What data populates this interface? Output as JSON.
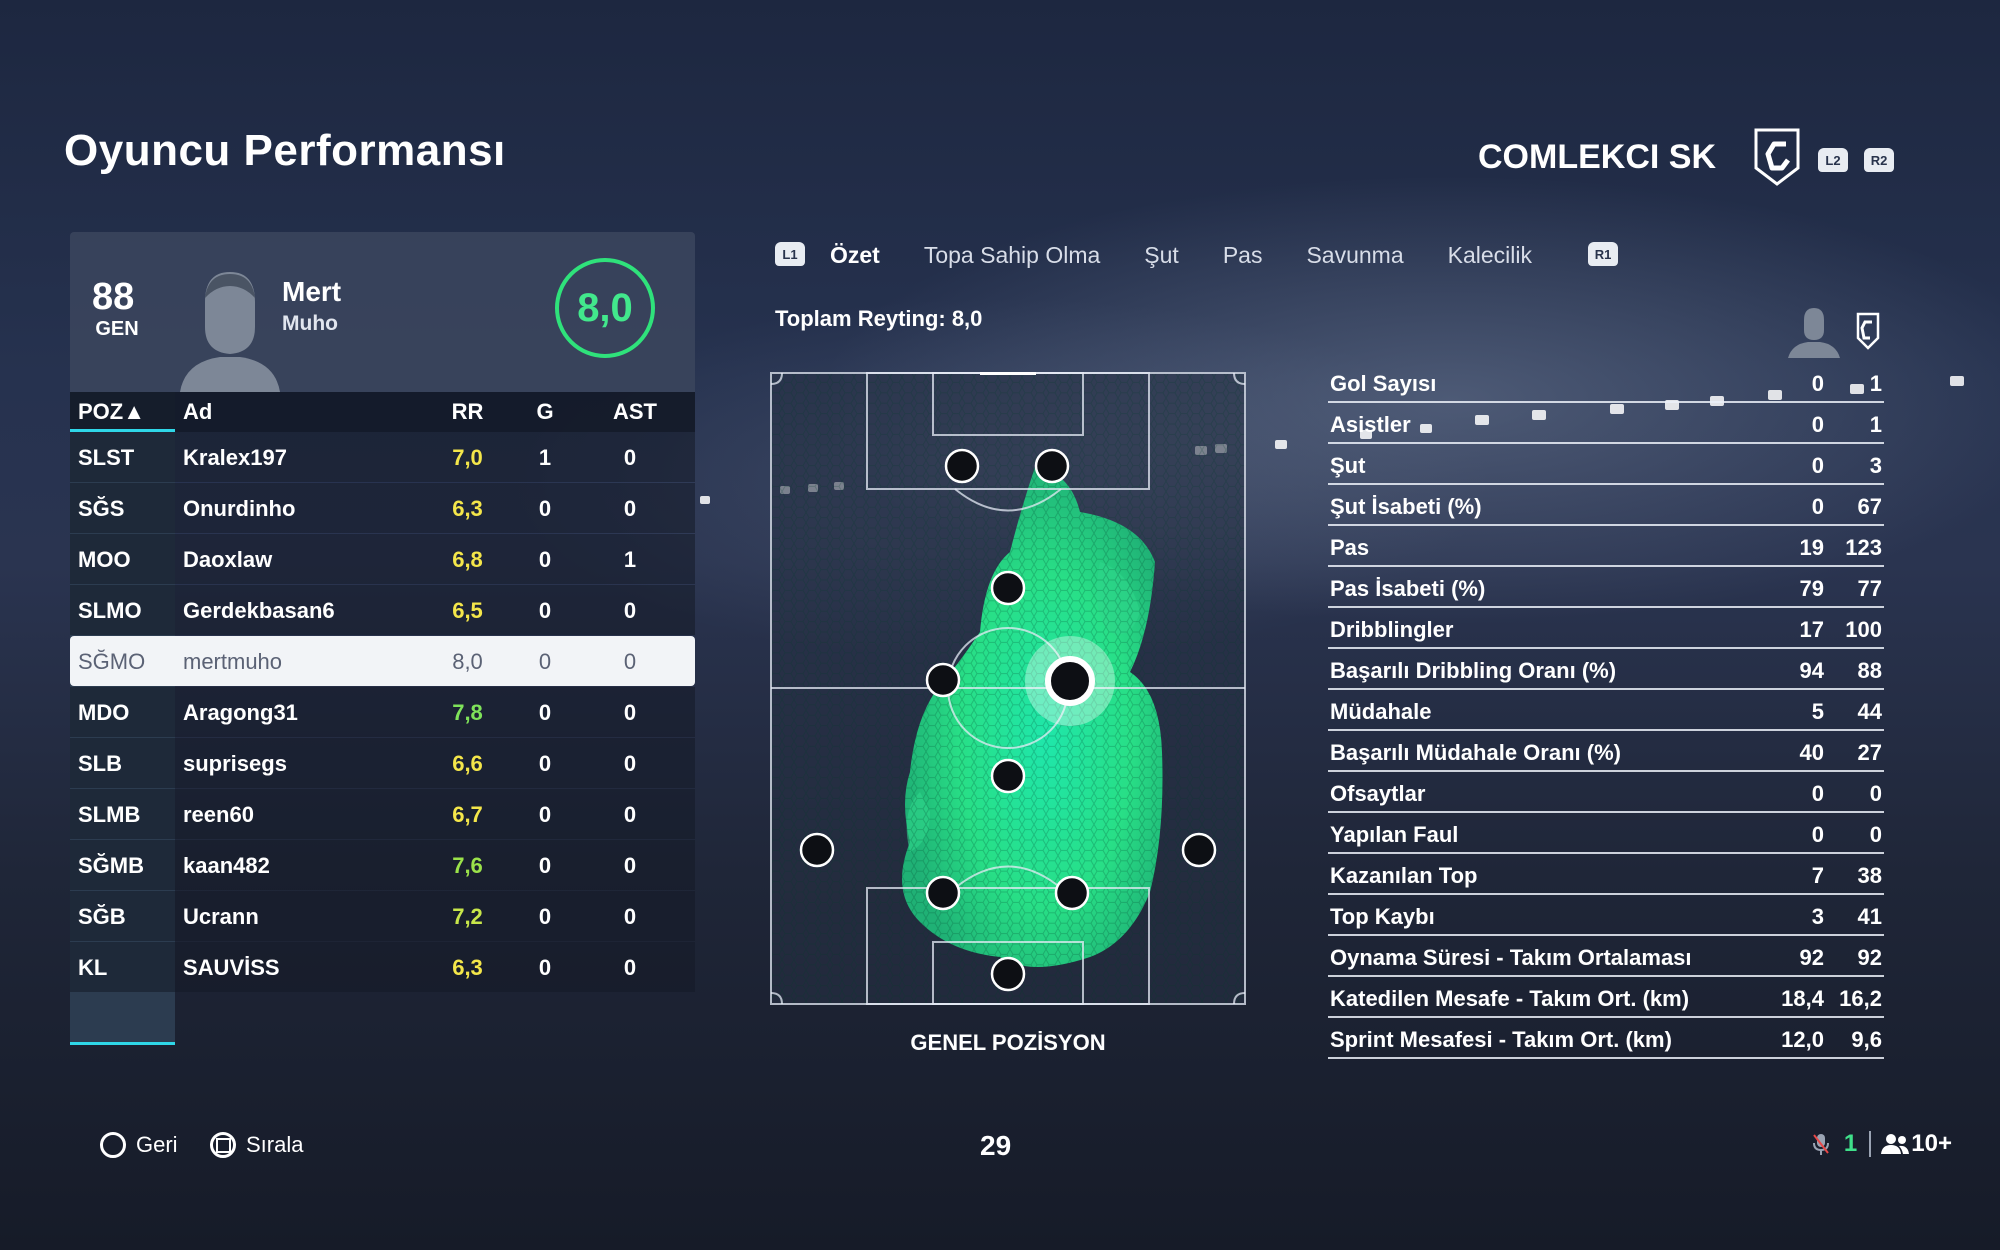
{
  "header": {
    "title": "Oyuncu Performansı",
    "club": "COMLEKCI SK",
    "l2": "L2",
    "r2": "R2"
  },
  "player": {
    "overall": "88",
    "overall_label": "GEN",
    "first_name": "Mert",
    "last_name": "Muho",
    "match_rating": "8,0"
  },
  "table": {
    "headers": {
      "pos": "POZ▲",
      "name": "Ad",
      "rr": "RR",
      "g": "G",
      "ast": "AST"
    },
    "rows": [
      {
        "pos": "SLST",
        "name": "Kralex197",
        "rr": "7,0",
        "g": "1",
        "ast": "0",
        "rr_color": "#f4e64a"
      },
      {
        "pos": "SĞS",
        "name": "Onurdinho",
        "rr": "6,3",
        "g": "0",
        "ast": "0",
        "rr_color": "#f4e64a"
      },
      {
        "pos": "MOO",
        "name": "Daoxlaw",
        "rr": "6,8",
        "g": "0",
        "ast": "1",
        "rr_color": "#f4e64a"
      },
      {
        "pos": "SLMO",
        "name": "Gerdekbasan6",
        "rr": "6,5",
        "g": "0",
        "ast": "0",
        "rr_color": "#f4e64a"
      },
      {
        "pos": "SĞMO",
        "name": "mertmuho",
        "rr": "8,0",
        "g": "0",
        "ast": "0",
        "rr_color": "#5b6275"
      },
      {
        "pos": "MDO",
        "name": "Aragong31",
        "rr": "7,8",
        "g": "0",
        "ast": "0",
        "rr_color": "#7fe35a"
      },
      {
        "pos": "SLB",
        "name": "suprisegs",
        "rr": "6,6",
        "g": "0",
        "ast": "0",
        "rr_color": "#f4e64a"
      },
      {
        "pos": "SLMB",
        "name": "reen60",
        "rr": "6,7",
        "g": "0",
        "ast": "0",
        "rr_color": "#f4e64a"
      },
      {
        "pos": "SĞMB",
        "name": "kaan482",
        "rr": "7,6",
        "g": "0",
        "ast": "0",
        "rr_color": "#9be24a"
      },
      {
        "pos": "SĞB",
        "name": "Ucrann",
        "rr": "7,2",
        "g": "0",
        "ast": "0",
        "rr_color": "#c8e64a"
      },
      {
        "pos": "KL",
        "name": "SAUVİSS",
        "rr": "6,3",
        "g": "0",
        "ast": "0",
        "rr_color": "#f4e64a"
      }
    ]
  },
  "tabs": {
    "l1": "L1",
    "r1": "R1",
    "items": [
      "Özet",
      "Topa Sahip Olma",
      "Şut",
      "Pas",
      "Savunma",
      "Kalecilik"
    ]
  },
  "total_rating": "Toplam Reyting: 8,0",
  "pitch_label": "GENEL POZİSYON",
  "stats": [
    {
      "label": "Gol Sayısı",
      "player": "0",
      "team": "1"
    },
    {
      "label": "Asistler",
      "player": "0",
      "team": "1"
    },
    {
      "label": "Şut",
      "player": "0",
      "team": "3"
    },
    {
      "label": "Şut İsabeti (%)",
      "player": "0",
      "team": "67"
    },
    {
      "label": "Pas",
      "player": "19",
      "team": "123"
    },
    {
      "label": "Pas İsabeti (%)",
      "player": "79",
      "team": "77"
    },
    {
      "label": "Dribblingler",
      "player": "17",
      "team": "100"
    },
    {
      "label": "Başarılı Dribbling Oranı (%)",
      "player": "94",
      "team": "88"
    },
    {
      "label": "Müdahale",
      "player": "5",
      "team": "44"
    },
    {
      "label": "Başarılı Müdahale Oranı (%)",
      "player": "40",
      "team": "27"
    },
    {
      "label": "Ofsaytlar",
      "player": "0",
      "team": "0"
    },
    {
      "label": "Yapılan Faul",
      "player": "0",
      "team": "0"
    },
    {
      "label": "Kazanılan Top",
      "player": "7",
      "team": "38"
    },
    {
      "label": "Top Kaybı",
      "player": "3",
      "team": "41"
    },
    {
      "label": "Oynama Süresi - Takım Ortalaması",
      "player": "92",
      "team": "92"
    },
    {
      "label": "Katedilen Mesafe - Takım Ort. (km)",
      "player": "18,4",
      "team": "16,2"
    },
    {
      "label": "Sprint Mesafesi - Takım Ort. (km)",
      "player": "12,0",
      "team": "9,6"
    }
  ],
  "footer": {
    "back": "Geri",
    "sort": "Sırala",
    "page": "29",
    "mic_count": "1",
    "players_online": "10+"
  }
}
